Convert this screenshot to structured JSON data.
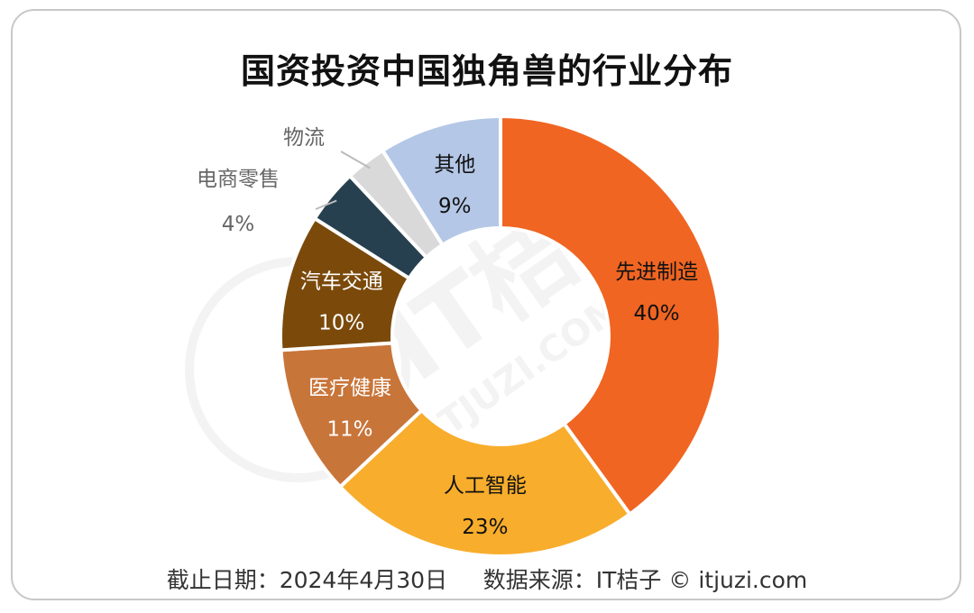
{
  "title": "国资投资中国独角兽的行业分布",
  "footer": {
    "date_text": "截止日期：2024年4月30日",
    "source_text": "数据来源：IT桔子 © itjuzi.com"
  },
  "watermark": {
    "brand": "IT桔子",
    "site": "ITJUZI.COM"
  },
  "chart_data": {
    "type": "pie",
    "style": "donut",
    "start": "12 o'clock, clockwise",
    "slices": [
      {
        "label": "先进制造",
        "value": 40,
        "value_label": "40%",
        "color": "#f06522"
      },
      {
        "label": "人工智能",
        "value": 23,
        "value_label": "23%",
        "color": "#f8ad2c"
      },
      {
        "label": "医疗健康",
        "value": 11,
        "value_label": "11%",
        "color": "#c8753a"
      },
      {
        "label": "汽车交通",
        "value": 10,
        "value_label": "10%",
        "color": "#7b4a0b"
      },
      {
        "label": "电商零售",
        "value": 4,
        "value_label": "4%",
        "color": "#27404f"
      },
      {
        "label": "物流",
        "value": 3,
        "value_label": "",
        "color": "#d9d9d9"
      },
      {
        "label": "其他",
        "value": 9,
        "value_label": "9%",
        "color": "#b4c7e7"
      }
    ]
  }
}
